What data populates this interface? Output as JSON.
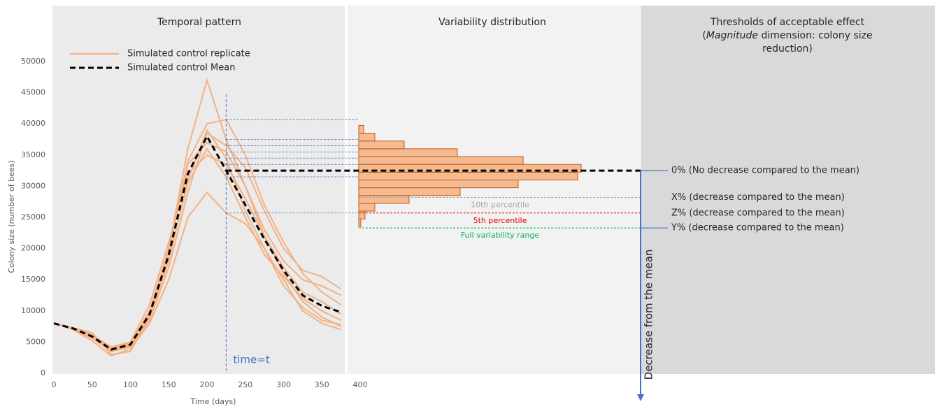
{
  "chart_data": [
    {
      "type": "line",
      "title": "Temporal pattern",
      "xlabel": "Time (days)",
      "ylabel": "Colony size (number of bees)",
      "x": [
        0,
        25,
        50,
        75,
        100,
        125,
        150,
        175,
        200,
        225,
        250,
        275,
        300,
        325,
        350,
        375
      ],
      "xlim": [
        0,
        400
      ],
      "xticks": [
        0,
        50,
        100,
        150,
        200,
        250,
        300,
        350,
        400
      ],
      "ylim": [
        0,
        50000
      ],
      "yticks": [
        0,
        5000,
        10000,
        15000,
        20000,
        25000,
        30000,
        35000,
        40000,
        45000,
        50000
      ],
      "legend": [
        "Simulated control replicate",
        "Simulated control Mean"
      ],
      "time_marker": {
        "x": 225,
        "label": "time=t",
        "color": "#4472c4"
      },
      "replicate_color": "#f4b183",
      "replicates": [
        [
          8000,
          7300,
          6500,
          3000,
          3500,
          9000,
          20000,
          36000,
          47000,
          37500,
          30000,
          23000,
          18000,
          15000,
          14000,
          12500
        ],
        [
          8000,
          7100,
          5600,
          3500,
          4200,
          8500,
          17000,
          29000,
          38500,
          36500,
          33000,
          26000,
          20000,
          16500,
          15500,
          13500
        ],
        [
          8000,
          7200,
          6000,
          4000,
          4800,
          10000,
          20000,
          34000,
          40000,
          40700,
          35000,
          27000,
          21000,
          16000,
          13000,
          11000
        ],
        [
          8000,
          7000,
          5200,
          2800,
          3900,
          8000,
          15000,
          25000,
          29000,
          25700,
          24000,
          20000,
          15000,
          10000,
          8000,
          7000
        ],
        [
          8000,
          7300,
          6200,
          4200,
          5000,
          11000,
          21000,
          32000,
          35000,
          33500,
          28000,
          22000,
          16000,
          11500,
          9000,
          7500
        ],
        [
          8000,
          7100,
          5800,
          3600,
          4400,
          9000,
          18000,
          31000,
          39000,
          34500,
          26000,
          20000,
          14000,
          10500,
          8500,
          7800
        ],
        [
          8000,
          7200,
          6100,
          3900,
          4700,
          9800,
          19500,
          33500,
          37000,
          35500,
          30000,
          22000,
          17000,
          13000,
          11500,
          9500
        ],
        [
          8000,
          7250,
          5900,
          3700,
          4500,
          9200,
          18500,
          30500,
          36000,
          31500,
          25000,
          19000,
          15500,
          12000,
          10000,
          8500
        ]
      ],
      "mean": [
        8000,
        7200,
        5900,
        3800,
        4600,
        9500,
        19000,
        32000,
        38000,
        32500,
        27000,
        21500,
        16500,
        12500,
        10800,
        9800
      ],
      "mean_color": "#000000"
    },
    {
      "type": "histogram",
      "title": "Variability distribution",
      "orientation": "horizontal",
      "bins": [
        23500,
        24750,
        26000,
        27250,
        28500,
        29750,
        31000,
        32250,
        33500,
        34750,
        36000,
        37250,
        38500,
        39750
      ],
      "counts": [
        3,
        9,
        23,
        72,
        145,
        228,
        313,
        318,
        235,
        141,
        65,
        23,
        7
      ],
      "color": "#f4b183",
      "edge_color": "#c55a11"
    }
  ],
  "thresholds": {
    "title_lines": [
      [
        {
          "text": "Thresholds of acceptable effect",
          "italic": false
        }
      ],
      [
        {
          "text": "(",
          "italic": false
        },
        {
          "text": "Magnitude",
          "italic": true
        },
        {
          "text": " dimension: colony size",
          "italic": false
        }
      ],
      [
        {
          "text": "reduction)",
          "italic": false
        }
      ]
    ],
    "axis_label": "Decrease from the mean",
    "axis_color": "#4472c4",
    "levels": [
      {
        "label": "0% (No decrease compared to the mean)",
        "value": 32500,
        "color": "#000000"
      },
      {
        "label": "X% (decrease compared to the mean)",
        "value": 28200,
        "percentile_label": "10th percentile",
        "color": "#a6a6a6"
      },
      {
        "label": "Z% (decrease compared to the mean)",
        "value": 25700,
        "percentile_label": "5th percentile",
        "color": "#e00000"
      },
      {
        "label": "Y% (decrease compared to the mean)",
        "value": 23300,
        "percentile_label": "Full variability range",
        "color": "#00b050"
      }
    ]
  }
}
